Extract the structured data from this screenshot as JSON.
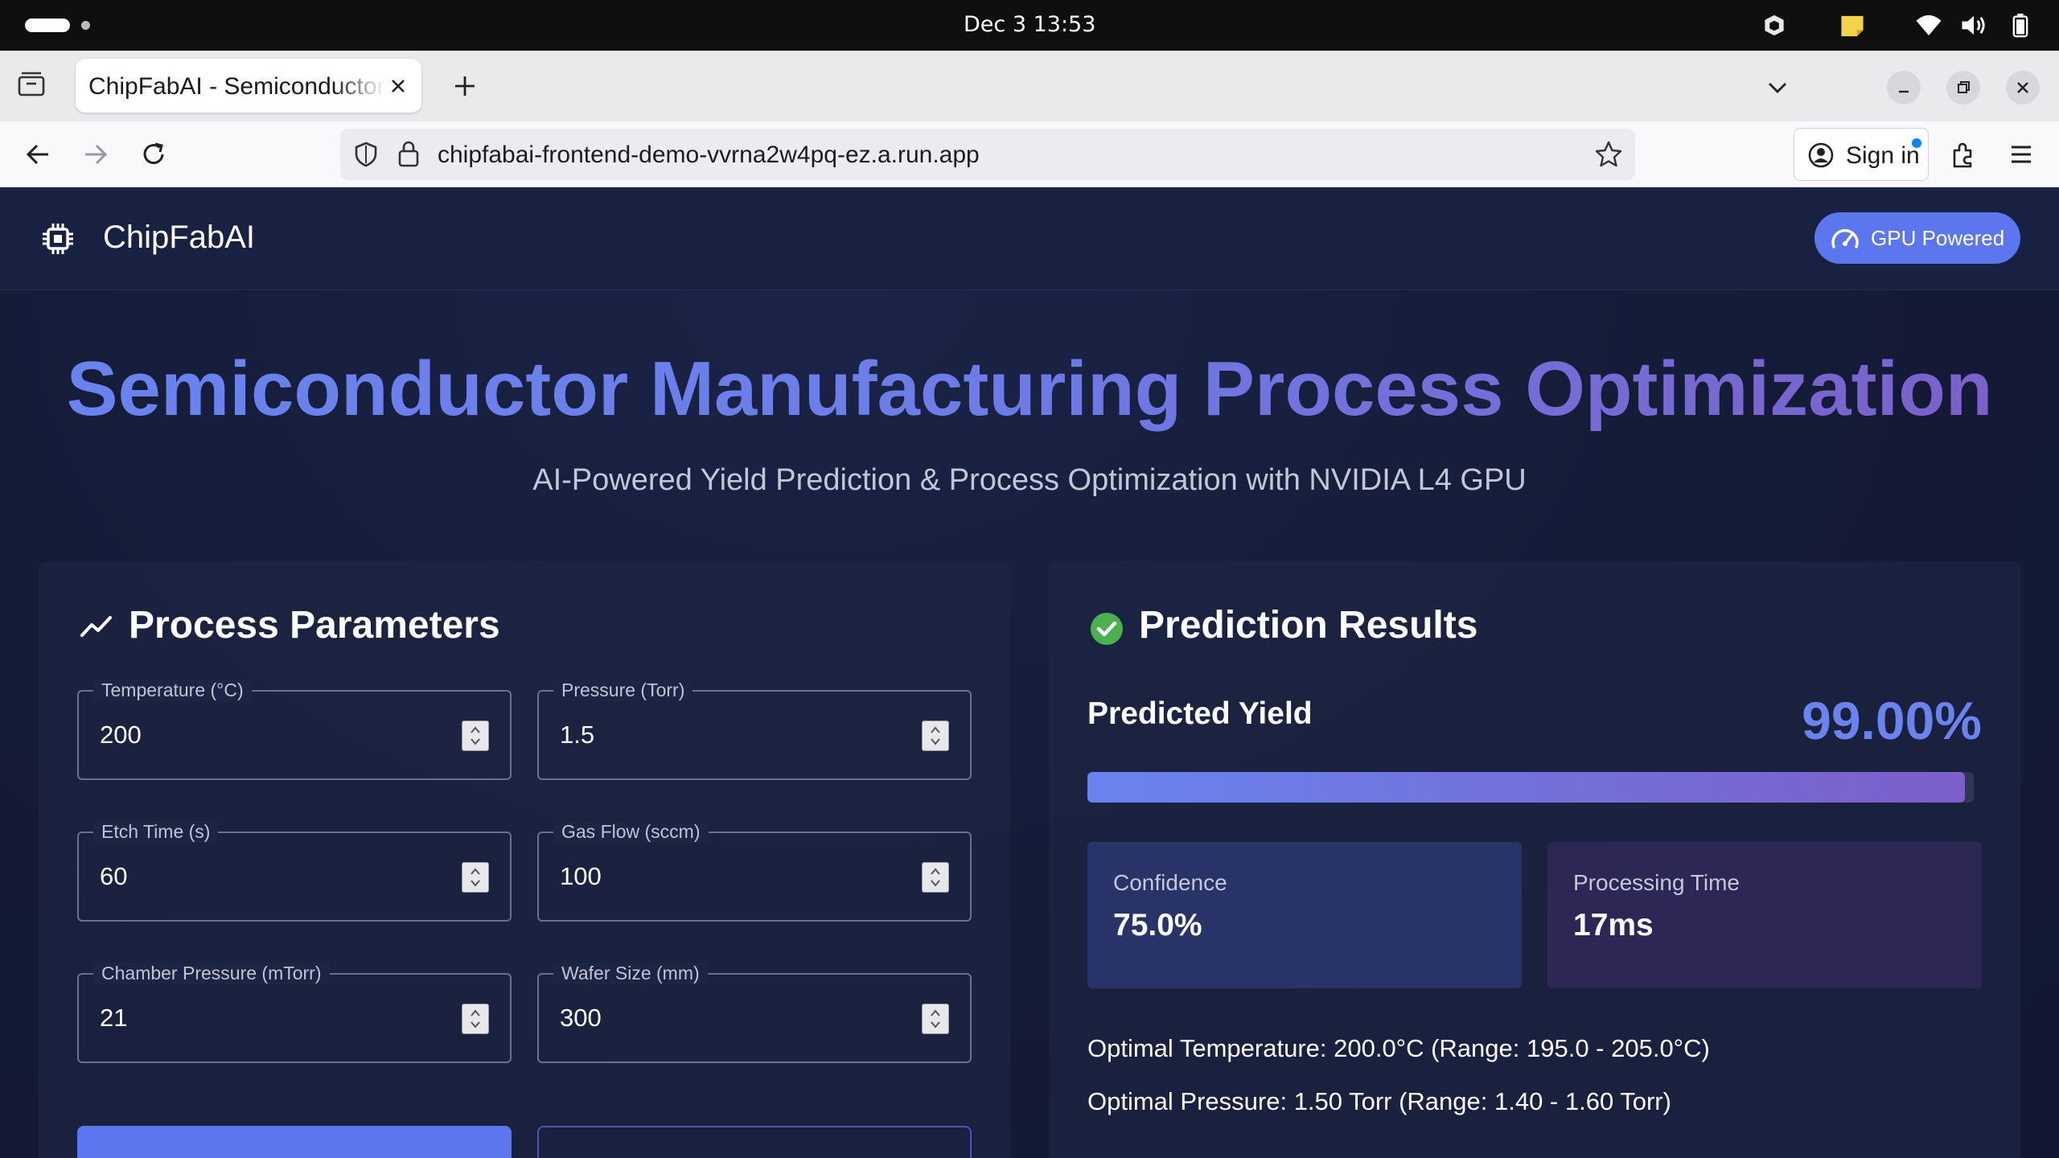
{
  "os": {
    "clock": "Dec 3  13:53"
  },
  "browser": {
    "tab_title": "ChipFabAI - Semiconductor Manufacturing Process Optimization",
    "url": "chipfabai-frontend-demo-vvrna2w4pq-ez.a.run.app",
    "sign_in_label": "Sign in"
  },
  "app": {
    "brand": "ChipFabAI",
    "badge": "GPU Powered",
    "hero_title": "Semiconductor Manufacturing Process Optimization",
    "hero_subtitle": "AI-Powered Yield Prediction & Process Optimization with NVIDIA L4 GPU"
  },
  "params": {
    "title": "Process Parameters",
    "fields": [
      {
        "label": "Temperature (°C)",
        "value": "200"
      },
      {
        "label": "Pressure (Torr)",
        "value": "1.5"
      },
      {
        "label": "Etch Time (s)",
        "value": "60"
      },
      {
        "label": "Gas Flow (sccm)",
        "value": "100"
      },
      {
        "label": "Chamber Pressure (mTorr)",
        "value": "21"
      },
      {
        "label": "Wafer Size (mm)",
        "value": "300"
      }
    ]
  },
  "results": {
    "title": "Prediction Results",
    "yield_label": "Predicted Yield",
    "yield_value": "99.00%",
    "yield_fraction": 0.99,
    "confidence_label": "Confidence",
    "confidence_value": "75.0%",
    "processing_label": "Processing Time",
    "processing_value": "17ms",
    "optimal_temperature": "Optimal Temperature: 200.0°C (Range: 195.0 - 205.0°C)",
    "optimal_pressure": "Optimal Pressure: 1.50 Torr (Range: 1.40 - 1.60 Torr)"
  },
  "colors": {
    "accent": "#5c76ee",
    "accent_purple": "#7c5fc8",
    "page_bg": "#141a33"
  },
  "icons": {
    "brand": "chip-icon",
    "badge": "speedometer-icon",
    "params": "trending-up-icon",
    "results": "check-circle-icon"
  }
}
